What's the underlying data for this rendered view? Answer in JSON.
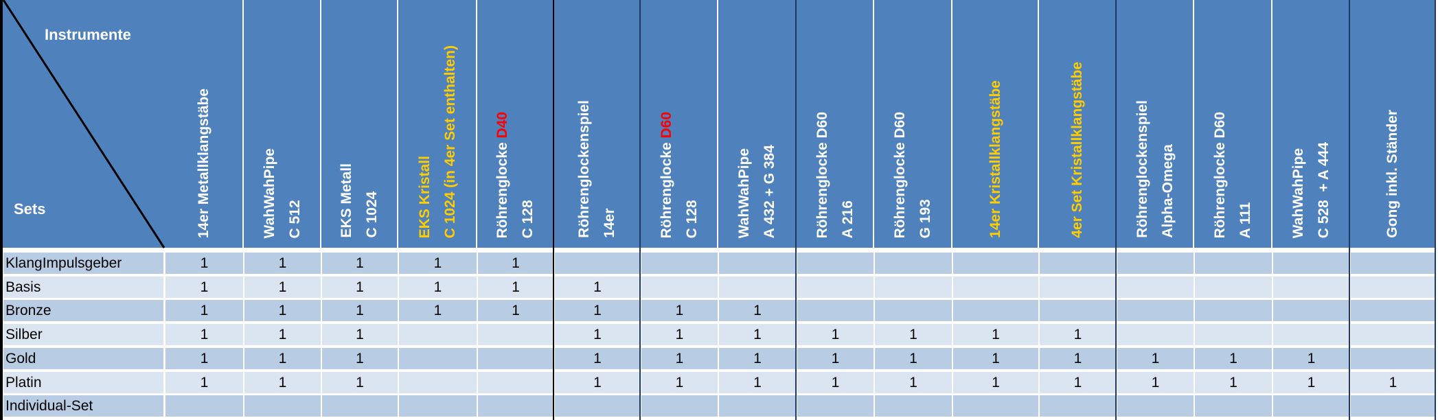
{
  "corner": {
    "instruments_label": "Instrumente",
    "sets_label": "Sets"
  },
  "colors": {
    "header_bg": "#4F81BD",
    "row_dark": "#B8CCE4",
    "row_light": "#DBE5F1",
    "highlight_yellow": "#FFCC00",
    "highlight_red": "#FF0000",
    "text_white": "#FFFFFF",
    "separator_navy": "#1F3864",
    "separator_black": "#000000"
  },
  "columns": [
    {
      "lines": [
        [
          {
            "text": "14er Metallklangstäbe",
            "color": "#FFFFFF"
          }
        ]
      ]
    },
    {
      "lines": [
        [
          {
            "text": "WahWahPipe",
            "color": "#FFFFFF"
          }
        ],
        [
          {
            "text": "C 512",
            "color": "#FFFFFF"
          }
        ]
      ]
    },
    {
      "lines": [
        [
          {
            "text": "EKS Metall",
            "color": "#FFFFFF"
          }
        ],
        [
          {
            "text": "C 1024",
            "color": "#FFFFFF"
          }
        ]
      ]
    },
    {
      "lines": [
        [
          {
            "text": "EKS Kristall",
            "color": "#FFCC00"
          }
        ],
        [
          {
            "text": "C 1024 (in 4er Set enthalten)",
            "color": "#FFCC00"
          }
        ]
      ]
    },
    {
      "lines": [
        [
          {
            "text": "Röhrenglocke ",
            "color": "#FFFFFF"
          },
          {
            "text": "D40",
            "color": "#FF0000"
          }
        ],
        [
          {
            "text": "C 128",
            "color": "#FFFFFF"
          }
        ]
      ]
    },
    {
      "lines": [
        [
          {
            "text": "Röhrenglockenspiel",
            "color": "#FFFFFF"
          }
        ],
        [
          {
            "text": "14er",
            "color": "#FFFFFF"
          }
        ]
      ]
    },
    {
      "lines": [
        [
          {
            "text": "Röhrenglocke ",
            "color": "#FFFFFF"
          },
          {
            "text": "D60",
            "color": "#FF0000"
          }
        ],
        [
          {
            "text": "C 128",
            "color": "#FFFFFF"
          }
        ]
      ]
    },
    {
      "lines": [
        [
          {
            "text": "WahWahPipe",
            "color": "#FFFFFF"
          }
        ],
        [
          {
            "text": "A 432 + G 384",
            "color": "#FFFFFF"
          }
        ]
      ]
    },
    {
      "lines": [
        [
          {
            "text": "Röhrenglocke D60",
            "color": "#FFFFFF"
          }
        ],
        [
          {
            "text": "A 216",
            "color": "#FFFFFF"
          }
        ]
      ]
    },
    {
      "lines": [
        [
          {
            "text": "Röhrenglocke D60",
            "color": "#FFFFFF"
          }
        ],
        [
          {
            "text": "G 193",
            "color": "#FFFFFF"
          }
        ]
      ]
    },
    {
      "lines": [
        [
          {
            "text": "14er Kristallklangstäbe",
            "color": "#FFCC00"
          }
        ]
      ]
    },
    {
      "lines": [
        [
          {
            "text": "4er Set Kristallklangstäbe",
            "color": "#FFCC00"
          }
        ]
      ]
    },
    {
      "lines": [
        [
          {
            "text": "Röhrenglockenspiel",
            "color": "#FFFFFF"
          }
        ],
        [
          {
            "text": "Alpha-Omega",
            "color": "#FFFFFF"
          }
        ]
      ]
    },
    {
      "lines": [
        [
          {
            "text": "Röhrenglocke D60",
            "color": "#FFFFFF"
          }
        ],
        [
          {
            "text": "A 111",
            "color": "#FFFFFF"
          }
        ]
      ]
    },
    {
      "lines": [
        [
          {
            "text": "WahWahPipe",
            "color": "#FFFFFF"
          }
        ],
        [
          {
            "text": "C 528  + A 444",
            "color": "#FFFFFF"
          }
        ]
      ]
    },
    {
      "lines": [
        [
          {
            "text": "Gong inkl. Ständer",
            "color": "#FFFFFF"
          }
        ]
      ]
    }
  ],
  "rows": [
    {
      "label": "KlangImpulsgeber",
      "values": [
        "1",
        "1",
        "1",
        "1",
        "1",
        "",
        "",
        "",
        "",
        "",
        "",
        "",
        "",
        "",
        "",
        ""
      ]
    },
    {
      "label": "Basis",
      "values": [
        "1",
        "1",
        "1",
        "1",
        "1",
        "1",
        "",
        "",
        "",
        "",
        "",
        "",
        "",
        "",
        "",
        ""
      ]
    },
    {
      "label": "Bronze",
      "values": [
        "1",
        "1",
        "1",
        "1",
        "1",
        "1",
        "1",
        "1",
        "",
        "",
        "",
        "",
        "",
        "",
        "",
        ""
      ]
    },
    {
      "label": "Silber",
      "values": [
        "1",
        "1",
        "1",
        "",
        "",
        "1",
        "1",
        "1",
        "1",
        "1",
        "1",
        "1",
        "",
        "",
        "",
        ""
      ]
    },
    {
      "label": "Gold",
      "values": [
        "1",
        "1",
        "1",
        "",
        "",
        "1",
        "1",
        "1",
        "1",
        "1",
        "1",
        "1",
        "1",
        "1",
        "1",
        ""
      ]
    },
    {
      "label": "Platin",
      "values": [
        "1",
        "1",
        "1",
        "",
        "",
        "1",
        "1",
        "1",
        "1",
        "1",
        "1",
        "1",
        "1",
        "1",
        "1",
        "1"
      ]
    },
    {
      "label": "Individual-Set",
      "values": [
        "",
        "",
        "",
        "",
        "",
        "",
        "",
        "",
        "",
        "",
        "",
        "",
        "",
        "",
        "",
        ""
      ]
    }
  ]
}
